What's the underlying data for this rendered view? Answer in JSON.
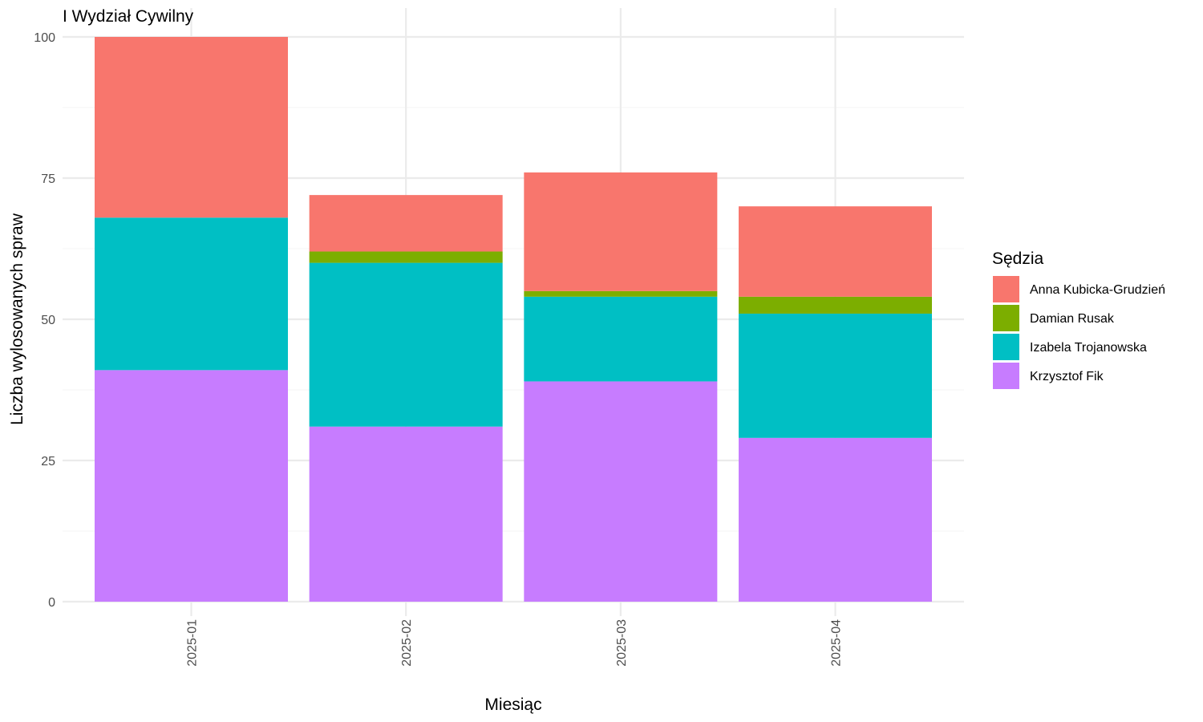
{
  "chart_data": {
    "type": "bar",
    "stacked": true,
    "title": "I Wydział Cywilny",
    "xlabel": "Miesiąc",
    "ylabel": "Liczba wylosowanych spraw",
    "ylim": [
      0,
      100
    ],
    "yticks": [
      0,
      25,
      50,
      75,
      100
    ],
    "categories": [
      "2025-01",
      "2025-02",
      "2025-03",
      "2025-04"
    ],
    "legend_title": "Sędzia",
    "legend_position": "right",
    "grid": true,
    "series": [
      {
        "name": "Anna Kubicka-Grudzień",
        "color": "#F8766D",
        "values": [
          32,
          10,
          21,
          16
        ]
      },
      {
        "name": "Damian Rusak",
        "color": "#7CAE00",
        "values": [
          0,
          2,
          1,
          3
        ]
      },
      {
        "name": "Izabela Trojanowska",
        "color": "#00BFC4",
        "values": [
          27,
          29,
          15,
          22
        ]
      },
      {
        "name": "Krzysztof Fik",
        "color": "#C77CFF",
        "values": [
          41,
          31,
          39,
          29
        ]
      }
    ]
  }
}
